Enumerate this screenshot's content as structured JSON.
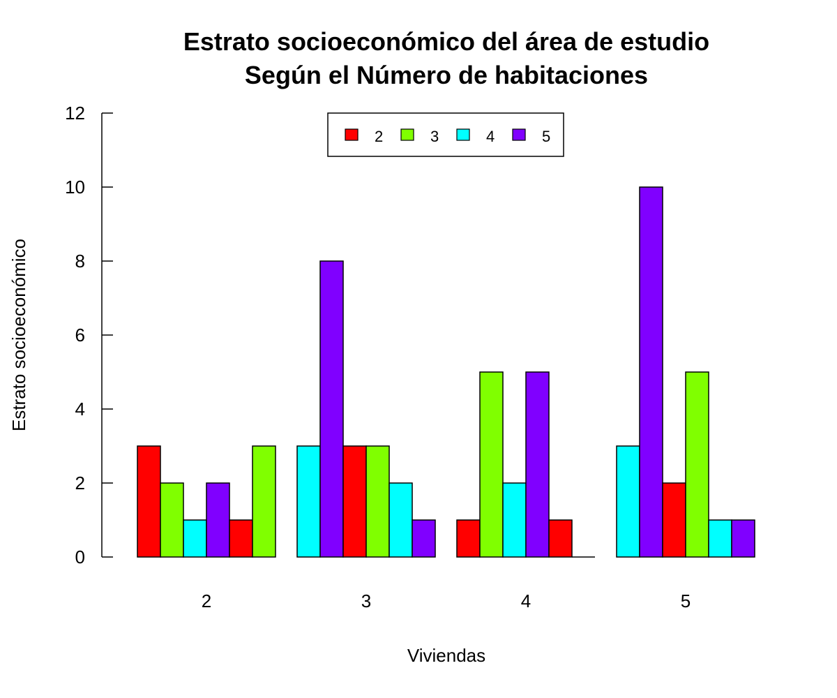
{
  "chart_data": {
    "type": "bar",
    "title": "Estrato socioeconómico del área de estudio",
    "subtitle": "Según el Número de habitaciones",
    "xlabel": "Viviendas",
    "ylabel": "Estrato socioeconómico",
    "ylim": [
      0,
      12
    ],
    "yticks": [
      "0",
      "2",
      "4",
      "6",
      "8",
      "10",
      "12"
    ],
    "categories": [
      "2",
      "3",
      "4",
      "5"
    ],
    "legend": {
      "position": "top-center",
      "entries": [
        {
          "label": "2",
          "color": "#FF0000"
        },
        {
          "label": "3",
          "color": "#80FF00"
        },
        {
          "label": "4",
          "color": "#00FFFF"
        },
        {
          "label": "5",
          "color": "#8000FF"
        }
      ]
    },
    "groups": [
      {
        "category": "2",
        "bars": [
          {
            "value": 3,
            "color": "#FF0000"
          },
          {
            "value": 2,
            "color": "#80FF00"
          },
          {
            "value": 1,
            "color": "#00FFFF"
          },
          {
            "value": 2,
            "color": "#8000FF"
          },
          {
            "value": 1,
            "color": "#FF0000"
          },
          {
            "value": 3,
            "color": "#80FF00"
          }
        ]
      },
      {
        "category": "3",
        "bars": [
          {
            "value": 3,
            "color": "#00FFFF"
          },
          {
            "value": 8,
            "color": "#8000FF"
          },
          {
            "value": 3,
            "color": "#FF0000"
          },
          {
            "value": 3,
            "color": "#80FF00"
          },
          {
            "value": 2,
            "color": "#00FFFF"
          },
          {
            "value": 1,
            "color": "#8000FF"
          }
        ]
      },
      {
        "category": "4",
        "bars": [
          {
            "value": 1,
            "color": "#FF0000"
          },
          {
            "value": 5,
            "color": "#80FF00"
          },
          {
            "value": 2,
            "color": "#00FFFF"
          },
          {
            "value": 5,
            "color": "#8000FF"
          },
          {
            "value": 1,
            "color": "#FF0000"
          },
          {
            "value": 0,
            "color": "#80FF00"
          }
        ]
      },
      {
        "category": "5",
        "bars": [
          {
            "value": 3,
            "color": "#00FFFF"
          },
          {
            "value": 10,
            "color": "#8000FF"
          },
          {
            "value": 2,
            "color": "#FF0000"
          },
          {
            "value": 5,
            "color": "#80FF00"
          },
          {
            "value": 1,
            "color": "#00FFFF"
          },
          {
            "value": 1,
            "color": "#8000FF"
          }
        ]
      }
    ]
  }
}
